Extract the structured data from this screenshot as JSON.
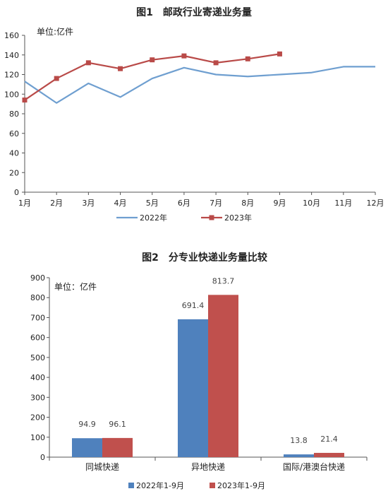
{
  "chart_data": [
    {
      "type": "line",
      "title": "图1　邮政行业寄递业务量",
      "unit_label": "单位:亿件",
      "categories": [
        "1月",
        "2月",
        "3月",
        "4月",
        "5月",
        "6月",
        "7月",
        "8月",
        "9月",
        "10月",
        "11月",
        "12月"
      ],
      "ylim": [
        0,
        160
      ],
      "yticks": [
        "0",
        "20",
        "40",
        "60",
        "80",
        "100",
        "120",
        "140",
        "160"
      ],
      "series": [
        {
          "name": "2022年",
          "color": "#6f9fd0",
          "values": [
            113,
            91,
            111,
            97,
            116,
            127,
            120,
            118,
            120,
            122,
            128,
            128
          ]
        },
        {
          "name": "2023年",
          "color": "#b94a48",
          "values": [
            94,
            116,
            132,
            126,
            135,
            139,
            132,
            136,
            141,
            null,
            null,
            null
          ]
        }
      ],
      "legend_position": "bottom"
    },
    {
      "type": "bar",
      "title": "图2　分专业快递业务量比较",
      "unit_label": "单位：亿件",
      "categories": [
        "同城快递",
        "异地快递",
        "国际/港澳台快递"
      ],
      "ylim": [
        0,
        900
      ],
      "yticks": [
        "0",
        "100",
        "200",
        "300",
        "400",
        "500",
        "600",
        "700",
        "800",
        "900"
      ],
      "series": [
        {
          "name": "2022年1-9月",
          "color": "#4f81bd",
          "values": [
            94.9,
            691.4,
            13.8
          ],
          "labels": [
            "94.9",
            "691.4",
            "13.8"
          ]
        },
        {
          "name": "2023年1-9月",
          "color": "#c0504d",
          "values": [
            96.1,
            813.7,
            21.4
          ],
          "labels": [
            "96.1",
            "813.7",
            "21.4"
          ]
        }
      ],
      "legend_position": "bottom"
    }
  ]
}
